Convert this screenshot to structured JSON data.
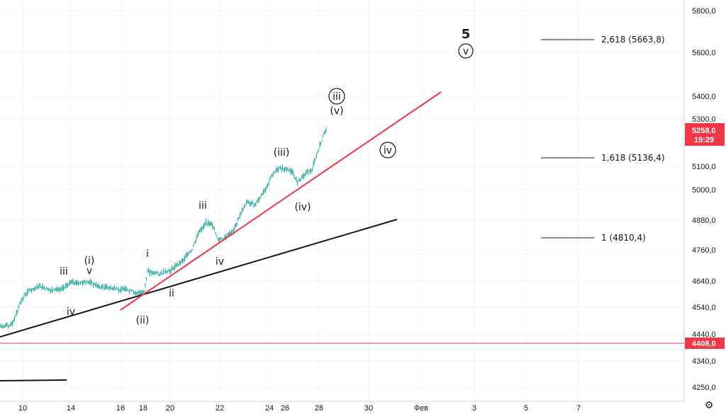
{
  "chart_data": {
    "type": "candlestick",
    "x_axis": {
      "ticks": [
        "10",
        "14",
        "16",
        "18",
        "20",
        "22",
        "24",
        "26",
        "28",
        "30",
        "Фев",
        "3",
        "5",
        "7"
      ]
    },
    "y_axis": {
      "ticks": [
        "5800,0",
        "5600,0",
        "5400,0",
        "5300,0",
        "5100,0",
        "5000,0",
        "4880,0",
        "4760,0",
        "4640,0",
        "4540,0",
        "4440,0",
        "4340,0",
        "4250,0"
      ]
    },
    "last_price": {
      "label": "5258,0",
      "countdown": "19:29",
      "color": "#f23645"
    },
    "horizontal_line": {
      "label": "4408,0",
      "color": "#f23645"
    },
    "fib_levels": [
      {
        "label": "2,618 (5663,8)"
      },
      {
        "label": "1,618 (5136,4)"
      },
      {
        "label": "1 (4810,4)"
      }
    ],
    "wave_labels": [
      {
        "text": "5"
      },
      {
        "text": "v"
      },
      {
        "text": "iii"
      },
      {
        "text": "(v)"
      },
      {
        "text": "iv"
      },
      {
        "text": "(iii)"
      },
      {
        "text": "(iv)"
      },
      {
        "text": "iii"
      },
      {
        "text": "iv"
      },
      {
        "text": "i"
      },
      {
        "text": "ii"
      },
      {
        "text": "(ii)"
      },
      {
        "text": "iii"
      },
      {
        "text": "(i)"
      },
      {
        "text": "v"
      },
      {
        "text": "iv"
      }
    ],
    "candle_color": "#26a69a"
  },
  "ui": {
    "settings_icon": "gear-icon"
  }
}
